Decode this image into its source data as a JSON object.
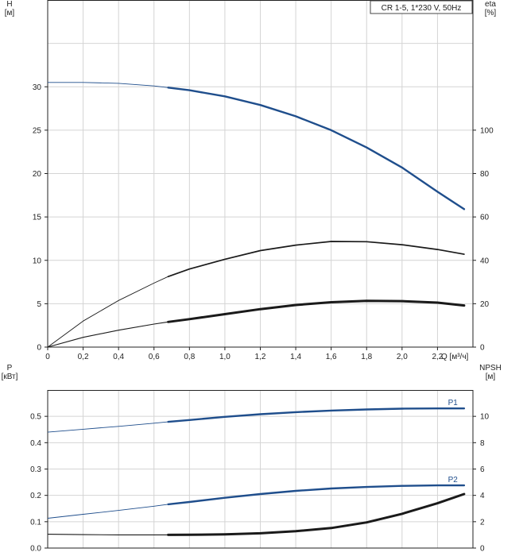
{
  "chart_data": [
    {
      "type": "line",
      "title": "CR 1-5, 1*230 V, 50Hz",
      "ylabel": "H",
      "ylabel_unit": "[м]",
      "y2label": "eta",
      "y2label_unit": "[%]",
      "xlabel": "Q [м³/ч]",
      "xlim": [
        0,
        2.4
      ],
      "ylim": [
        0,
        40
      ],
      "y2lim": [
        0,
        160
      ],
      "x_ticks": [
        "0",
        "0,2",
        "0,4",
        "0,6",
        "0,8",
        "1,0",
        "1,2",
        "1,4",
        "1,6",
        "1,8",
        "2,0",
        "2,2"
      ],
      "y_ticks": [
        "0",
        "5",
        "10",
        "15",
        "20",
        "25",
        "30"
      ],
      "y2_ticks": [
        "0",
        "20",
        "40",
        "60",
        "80",
        "100"
      ],
      "grid": true,
      "series": [
        {
          "color": "#1f4e8c",
          "axis": "left",
          "weight": "thick",
          "x": [
            0,
            0.2,
            0.4,
            0.6,
            0.68,
            0.8,
            1.0,
            1.2,
            1.4,
            1.6,
            1.8,
            2.0,
            2.2,
            2.35
          ],
          "values": [
            30.5,
            30.5,
            30.4,
            30.1,
            29.9,
            29.6,
            28.9,
            27.9,
            26.6,
            25.0,
            23.0,
            20.7,
            17.9,
            15.9
          ],
          "duty_start": 0.68
        },
        {
          "color": "#1a1a1a",
          "axis": "right",
          "weight": "medium",
          "x": [
            0,
            0.2,
            0.4,
            0.6,
            0.68,
            0.8,
            1.0,
            1.2,
            1.4,
            1.6,
            1.8,
            2.0,
            2.2,
            2.35
          ],
          "values": [
            0,
            12,
            21.5,
            29.5,
            32.5,
            36,
            40.5,
            44.5,
            47,
            48.7,
            48.6,
            47.2,
            45,
            42.8
          ],
          "duty_start": 0.68
        },
        {
          "color": "#1a1a1a",
          "axis": "right",
          "weight": "heavy",
          "x": [
            0,
            0.2,
            0.4,
            0.6,
            0.68,
            0.8,
            1.0,
            1.2,
            1.4,
            1.6,
            1.8,
            2.0,
            2.2,
            2.35
          ],
          "values": [
            0,
            4.5,
            7.8,
            10.6,
            11.6,
            12.9,
            15.2,
            17.5,
            19.4,
            20.7,
            21.3,
            21.2,
            20.5,
            19.2
          ],
          "duty_start": 0.68
        }
      ]
    },
    {
      "type": "line",
      "ylabel": "P",
      "ylabel_unit": "[кВт]",
      "y2label": "NPSH",
      "y2label_unit": "[м]",
      "xlim": [
        0,
        2.4
      ],
      "ylim": [
        0,
        0.6
      ],
      "y2lim": [
        0,
        12
      ],
      "y_ticks": [
        "0.0",
        "0.1",
        "0.2",
        "0.3",
        "0.4",
        "0.5"
      ],
      "y2_ticks": [
        "0",
        "2",
        "4",
        "6",
        "8",
        "10"
      ],
      "grid": true,
      "series": [
        {
          "name": "P1",
          "color": "#1f4e8c",
          "axis": "left",
          "weight": "thick",
          "x": [
            0,
            0.2,
            0.4,
            0.6,
            0.68,
            0.8,
            1.0,
            1.2,
            1.4,
            1.6,
            1.8,
            2.0,
            2.2,
            2.35
          ],
          "values": [
            0.44,
            0.451,
            0.462,
            0.474,
            0.479,
            0.486,
            0.498,
            0.508,
            0.516,
            0.522,
            0.526,
            0.529,
            0.53,
            0.53
          ],
          "duty_start": 0.68
        },
        {
          "name": "P2",
          "color": "#1f4e8c",
          "axis": "left",
          "weight": "thick",
          "x": [
            0,
            0.2,
            0.4,
            0.6,
            0.68,
            0.8,
            1.0,
            1.2,
            1.4,
            1.6,
            1.8,
            2.0,
            2.2,
            2.35
          ],
          "values": [
            0.113,
            0.128,
            0.143,
            0.159,
            0.166,
            0.175,
            0.191,
            0.205,
            0.217,
            0.226,
            0.232,
            0.236,
            0.238,
            0.238
          ],
          "duty_start": 0.68
        },
        {
          "color": "#1a1a1a",
          "axis": "right",
          "weight": "heavy",
          "x": [
            0,
            0.2,
            0.4,
            0.6,
            0.68,
            0.8,
            1.0,
            1.2,
            1.4,
            1.6,
            1.8,
            2.0,
            2.2,
            2.35
          ],
          "values": [
            1.05,
            1.02,
            1.0,
            1.0,
            1.0,
            1.01,
            1.04,
            1.12,
            1.28,
            1.52,
            1.95,
            2.6,
            3.4,
            4.1
          ],
          "duty_start": 0.68
        }
      ]
    }
  ]
}
